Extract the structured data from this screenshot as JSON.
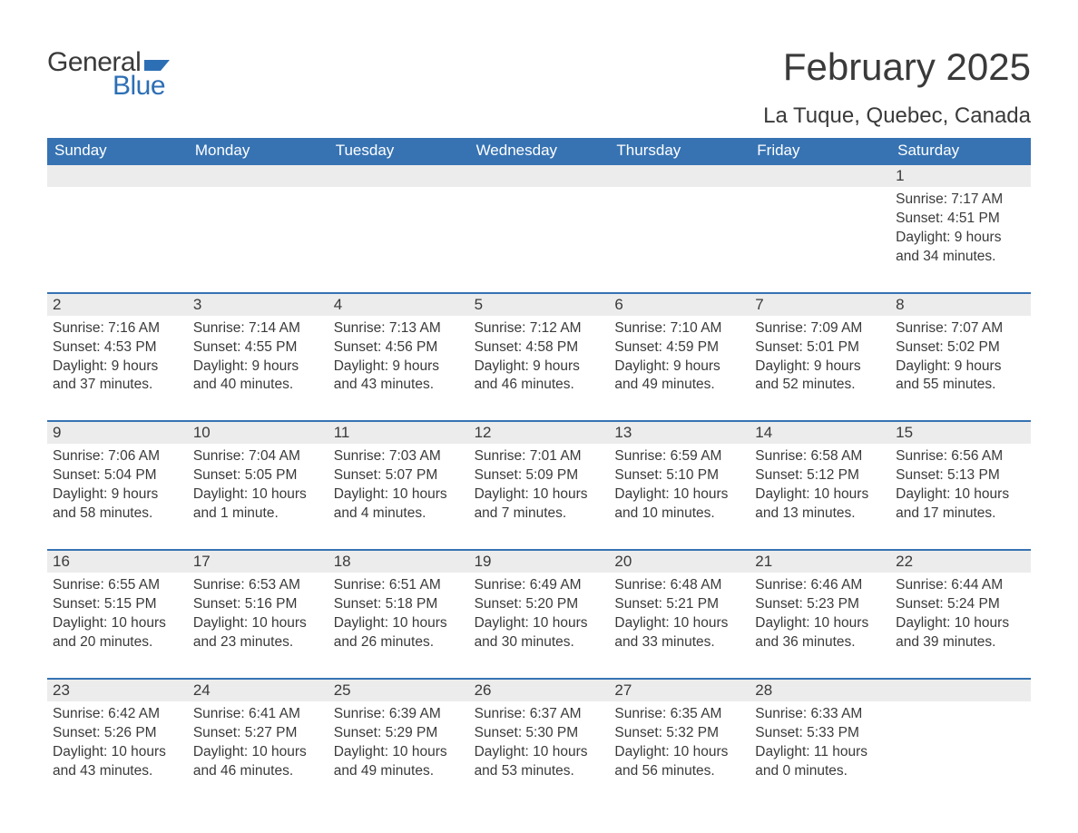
{
  "logo": {
    "general": "General",
    "blue": "Blue",
    "flag_color": "#2d6fb5"
  },
  "title": "February 2025",
  "location": "La Tuque, Quebec, Canada",
  "colors": {
    "header_bg": "#3773b3",
    "header_text": "#ffffff",
    "row_border": "#3773b3",
    "daynum_bg": "#ececec",
    "text": "#3a3a3a",
    "page_bg": "#ffffff"
  },
  "day_names": [
    "Sunday",
    "Monday",
    "Tuesday",
    "Wednesday",
    "Thursday",
    "Friday",
    "Saturday"
  ],
  "weeks": [
    [
      null,
      null,
      null,
      null,
      null,
      null,
      {
        "n": "1",
        "sunrise": "Sunrise: 7:17 AM",
        "sunset": "Sunset: 4:51 PM",
        "daylight": "Daylight: 9 hours and 34 minutes."
      }
    ],
    [
      {
        "n": "2",
        "sunrise": "Sunrise: 7:16 AM",
        "sunset": "Sunset: 4:53 PM",
        "daylight": "Daylight: 9 hours and 37 minutes."
      },
      {
        "n": "3",
        "sunrise": "Sunrise: 7:14 AM",
        "sunset": "Sunset: 4:55 PM",
        "daylight": "Daylight: 9 hours and 40 minutes."
      },
      {
        "n": "4",
        "sunrise": "Sunrise: 7:13 AM",
        "sunset": "Sunset: 4:56 PM",
        "daylight": "Daylight: 9 hours and 43 minutes."
      },
      {
        "n": "5",
        "sunrise": "Sunrise: 7:12 AM",
        "sunset": "Sunset: 4:58 PM",
        "daylight": "Daylight: 9 hours and 46 minutes."
      },
      {
        "n": "6",
        "sunrise": "Sunrise: 7:10 AM",
        "sunset": "Sunset: 4:59 PM",
        "daylight": "Daylight: 9 hours and 49 minutes."
      },
      {
        "n": "7",
        "sunrise": "Sunrise: 7:09 AM",
        "sunset": "Sunset: 5:01 PM",
        "daylight": "Daylight: 9 hours and 52 minutes."
      },
      {
        "n": "8",
        "sunrise": "Sunrise: 7:07 AM",
        "sunset": "Sunset: 5:02 PM",
        "daylight": "Daylight: 9 hours and 55 minutes."
      }
    ],
    [
      {
        "n": "9",
        "sunrise": "Sunrise: 7:06 AM",
        "sunset": "Sunset: 5:04 PM",
        "daylight": "Daylight: 9 hours and 58 minutes."
      },
      {
        "n": "10",
        "sunrise": "Sunrise: 7:04 AM",
        "sunset": "Sunset: 5:05 PM",
        "daylight": "Daylight: 10 hours and 1 minute."
      },
      {
        "n": "11",
        "sunrise": "Sunrise: 7:03 AM",
        "sunset": "Sunset: 5:07 PM",
        "daylight": "Daylight: 10 hours and 4 minutes."
      },
      {
        "n": "12",
        "sunrise": "Sunrise: 7:01 AM",
        "sunset": "Sunset: 5:09 PM",
        "daylight": "Daylight: 10 hours and 7 minutes."
      },
      {
        "n": "13",
        "sunrise": "Sunrise: 6:59 AM",
        "sunset": "Sunset: 5:10 PM",
        "daylight": "Daylight: 10 hours and 10 minutes."
      },
      {
        "n": "14",
        "sunrise": "Sunrise: 6:58 AM",
        "sunset": "Sunset: 5:12 PM",
        "daylight": "Daylight: 10 hours and 13 minutes."
      },
      {
        "n": "15",
        "sunrise": "Sunrise: 6:56 AM",
        "sunset": "Sunset: 5:13 PM",
        "daylight": "Daylight: 10 hours and 17 minutes."
      }
    ],
    [
      {
        "n": "16",
        "sunrise": "Sunrise: 6:55 AM",
        "sunset": "Sunset: 5:15 PM",
        "daylight": "Daylight: 10 hours and 20 minutes."
      },
      {
        "n": "17",
        "sunrise": "Sunrise: 6:53 AM",
        "sunset": "Sunset: 5:16 PM",
        "daylight": "Daylight: 10 hours and 23 minutes."
      },
      {
        "n": "18",
        "sunrise": "Sunrise: 6:51 AM",
        "sunset": "Sunset: 5:18 PM",
        "daylight": "Daylight: 10 hours and 26 minutes."
      },
      {
        "n": "19",
        "sunrise": "Sunrise: 6:49 AM",
        "sunset": "Sunset: 5:20 PM",
        "daylight": "Daylight: 10 hours and 30 minutes."
      },
      {
        "n": "20",
        "sunrise": "Sunrise: 6:48 AM",
        "sunset": "Sunset: 5:21 PM",
        "daylight": "Daylight: 10 hours and 33 minutes."
      },
      {
        "n": "21",
        "sunrise": "Sunrise: 6:46 AM",
        "sunset": "Sunset: 5:23 PM",
        "daylight": "Daylight: 10 hours and 36 minutes."
      },
      {
        "n": "22",
        "sunrise": "Sunrise: 6:44 AM",
        "sunset": "Sunset: 5:24 PM",
        "daylight": "Daylight: 10 hours and 39 minutes."
      }
    ],
    [
      {
        "n": "23",
        "sunrise": "Sunrise: 6:42 AM",
        "sunset": "Sunset: 5:26 PM",
        "daylight": "Daylight: 10 hours and 43 minutes."
      },
      {
        "n": "24",
        "sunrise": "Sunrise: 6:41 AM",
        "sunset": "Sunset: 5:27 PM",
        "daylight": "Daylight: 10 hours and 46 minutes."
      },
      {
        "n": "25",
        "sunrise": "Sunrise: 6:39 AM",
        "sunset": "Sunset: 5:29 PM",
        "daylight": "Daylight: 10 hours and 49 minutes."
      },
      {
        "n": "26",
        "sunrise": "Sunrise: 6:37 AM",
        "sunset": "Sunset: 5:30 PM",
        "daylight": "Daylight: 10 hours and 53 minutes."
      },
      {
        "n": "27",
        "sunrise": "Sunrise: 6:35 AM",
        "sunset": "Sunset: 5:32 PM",
        "daylight": "Daylight: 10 hours and 56 minutes."
      },
      {
        "n": "28",
        "sunrise": "Sunrise: 6:33 AM",
        "sunset": "Sunset: 5:33 PM",
        "daylight": "Daylight: 11 hours and 0 minutes."
      },
      null
    ]
  ]
}
